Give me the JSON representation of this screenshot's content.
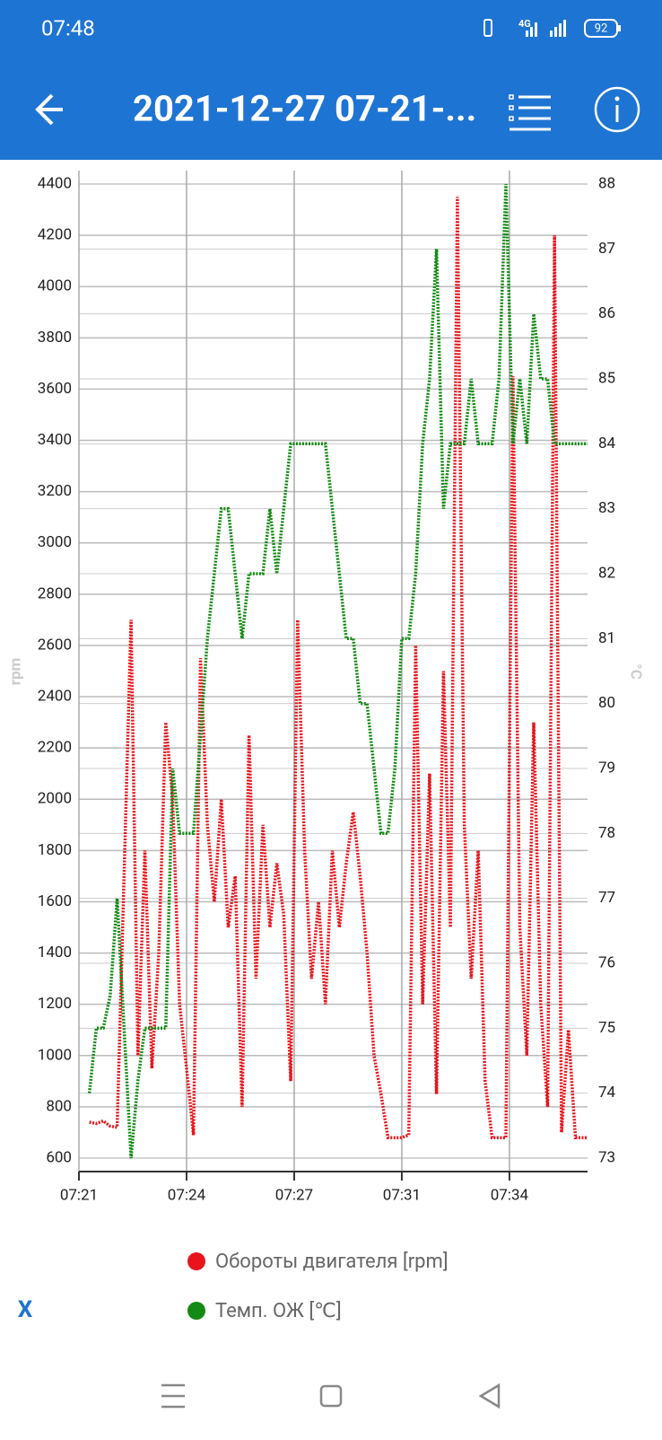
{
  "status_bar": {
    "time": "07:48",
    "network": "4G",
    "battery": "92"
  },
  "app_bar": {
    "title": "2021-12-27 07-21-..."
  },
  "close_button": "X",
  "chart_data": {
    "type": "line",
    "y_label": "rpm",
    "y2_label": "°C",
    "x": [
      21.6,
      21.8,
      22.0,
      22.2,
      22.4,
      22.6,
      22.8,
      23.0,
      23.2,
      23.4,
      23.6,
      23.8,
      24.0,
      24.2,
      24.4,
      24.6,
      24.8,
      25.0,
      25.2,
      25.4,
      25.6,
      25.8,
      26.0,
      26.2,
      26.4,
      26.6,
      26.8,
      27.0,
      27.2,
      27.4,
      27.6,
      27.8,
      28.0,
      28.2,
      28.4,
      28.6,
      28.8,
      29.0,
      29.2,
      29.4,
      29.6,
      29.8,
      30.0,
      30.2,
      30.4,
      30.6,
      30.8,
      31.0,
      31.2,
      31.4,
      31.6,
      31.8,
      32.0,
      32.2,
      32.4,
      32.6,
      32.8,
      33.0,
      33.2,
      33.4,
      33.6,
      33.8,
      34.0,
      34.2,
      34.4,
      34.6,
      34.8,
      35.0,
      35.2,
      35.4,
      35.6,
      35.8,
      35.95
    ],
    "series": [
      {
        "name": "Обороты двигателя [rpm]",
        "color": "#e8141c",
        "values": [
          740,
          735,
          745,
          725,
          720,
          1700,
          2700,
          1000,
          1800,
          950,
          1400,
          2300,
          2000,
          1200,
          950,
          690,
          2550,
          1900,
          1600,
          2000,
          1500,
          1700,
          800,
          2250,
          1300,
          1900,
          1500,
          1750,
          1550,
          900,
          2700,
          1800,
          1300,
          1600,
          1200,
          1800,
          1500,
          1750,
          1950,
          1700,
          1400,
          1000,
          850,
          680,
          680,
          680,
          690,
          2600,
          1200,
          2100,
          850,
          2500,
          1500,
          4350,
          1900,
          1300,
          1800,
          900,
          680,
          680,
          680,
          3650,
          1500,
          1000,
          2300,
          1200,
          800,
          4200,
          700,
          1100,
          680,
          680,
          680
        ]
      },
      {
        "name": "Темп. ОЖ [℃]",
        "color": "#138a13",
        "axis": "y2",
        "values": [
          74,
          75,
          75,
          75.5,
          77,
          75,
          73,
          74.2,
          75,
          75,
          75,
          75,
          79,
          78,
          78,
          78,
          79.5,
          81,
          82,
          83,
          83,
          82,
          81,
          82,
          82,
          82,
          83,
          82,
          83,
          84,
          84,
          84,
          84,
          84,
          84,
          83,
          82,
          81,
          81,
          80,
          80,
          79,
          78,
          78,
          79,
          81,
          81,
          82,
          84,
          85,
          87,
          83,
          84,
          84,
          84,
          85,
          84,
          84,
          84,
          85,
          88,
          84,
          85,
          84,
          86,
          85,
          85,
          84,
          84,
          84,
          84,
          84,
          84
        ]
      }
    ],
    "xlim": [
      21.3,
      35.95
    ],
    "xticks": [
      {
        "value": 21.3,
        "label": "07:21"
      },
      {
        "value": 24.4,
        "label": "07:24"
      },
      {
        "value": 27.5,
        "label": "07:27"
      },
      {
        "value": 30.6,
        "label": "07:31"
      },
      {
        "value": 33.7,
        "label": "07:34"
      }
    ],
    "ylim": [
      600,
      4400
    ],
    "yticks": [
      600,
      800,
      1000,
      1200,
      1400,
      1600,
      1800,
      2000,
      2200,
      2400,
      2600,
      2800,
      3000,
      3200,
      3400,
      3600,
      3800,
      4000,
      4200,
      4400
    ],
    "y2lim": [
      73,
      88
    ],
    "y2ticks": [
      73,
      74,
      75,
      76,
      77,
      78,
      79,
      80,
      81,
      82,
      83,
      84,
      85,
      86,
      87,
      88
    ],
    "grid": true
  }
}
